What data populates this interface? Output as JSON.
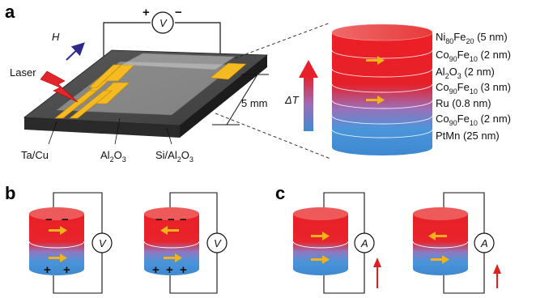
{
  "panels": {
    "a": "a",
    "b": "b",
    "c": "c"
  },
  "device": {
    "field_label": "H",
    "laser_label": "Laser",
    "plus": "+",
    "minus": "−",
    "voltmeter": "V",
    "dimension": "5 mm",
    "contact_label": "Ta/Cu",
    "barrier_label_main": "Al",
    "barrier_label_sub": "2",
    "barrier_label_main2": "O",
    "barrier_label_sub2": "3",
    "substrate_label_main": "Si/Al",
    "substrate_label_sub": "2",
    "substrate_label_main2": "O",
    "substrate_label_sub2": "3"
  },
  "gradient": {
    "label": "ΔT"
  },
  "stack": {
    "layers": [
      {
        "el1": "Ni",
        "s1": "80",
        "el2": "Fe",
        "s2": "20",
        "thick": " (5 nm)"
      },
      {
        "el1": "Co",
        "s1": "90",
        "el2": "Fe",
        "s2": "10",
        "thick": " (2 nm)"
      },
      {
        "el1": "Al",
        "s1": "2",
        "el2": "O",
        "s2": "3",
        "thick": " (2 nm)"
      },
      {
        "el1": "Co",
        "s1": "90",
        "el2": "Fe",
        "s2": "10",
        "thick": " (3 nm)"
      },
      {
        "el1": "Ru",
        "s1": "",
        "el2": "",
        "s2": "",
        "thick": " (0.8 nm)"
      },
      {
        "el1": "Co",
        "s1": "90",
        "el2": "Fe",
        "s2": "10",
        "thick": " (2 nm)"
      },
      {
        "el1": "PtMn",
        "s1": "",
        "el2": "",
        "s2": "",
        "thick": " (25 nm)"
      }
    ]
  },
  "panel_b": {
    "meter_1": "V",
    "meter_2": "V",
    "left_top_charges": [
      "−",
      "−"
    ],
    "left_bottom_charges": [
      "+",
      "+"
    ],
    "right_top_charges": [
      "−",
      "−",
      "−"
    ],
    "right_bottom_charges": [
      "+",
      "+",
      "+"
    ],
    "left_state": "parallel",
    "right_state": "antiparallel"
  },
  "panel_c": {
    "meter_1": "A",
    "meter_2": "A",
    "left_state": "parallel",
    "right_state": "antiparallel"
  },
  "colors": {
    "hot": "#e8202a",
    "cold": "#3e8fd8",
    "contact": "#f5b922",
    "substrate": "#3a3a3a",
    "arrow": "#f2b21a",
    "field_arrow": "#2d2a8c",
    "current_arrow": "#e02020"
  }
}
